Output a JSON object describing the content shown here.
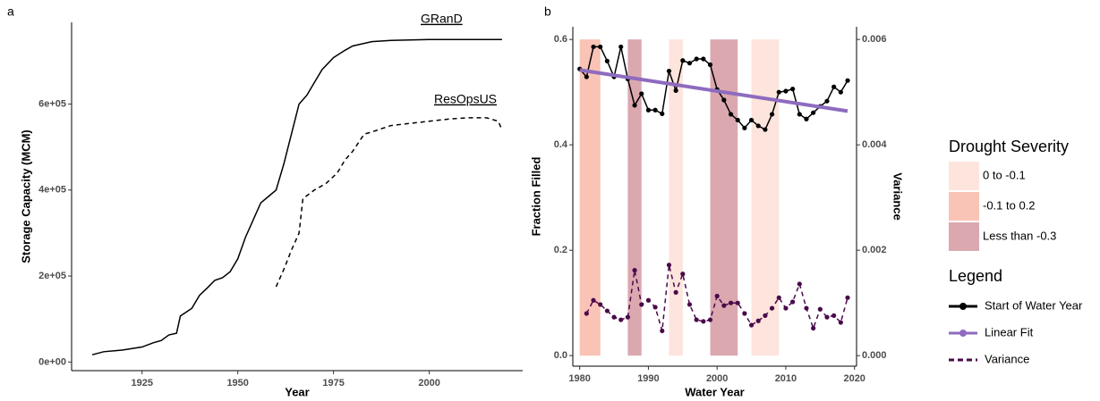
{
  "chart_data": [
    {
      "type": "line",
      "panel_label": "a",
      "x_label": "Year",
      "y_label": "Storage Capacity (MCM)",
      "xlim": [
        1906.6,
        2024.4
      ],
      "xticks": [
        1925,
        1950,
        1975,
        2000
      ],
      "ylim": [
        -20000,
        790000
      ],
      "yticks": [
        {
          "value": 0,
          "label": "0e+00"
        },
        {
          "value": 200000,
          "label": "2e+05"
        },
        {
          "value": 400000,
          "label": "4e+05"
        },
        {
          "value": 600000,
          "label": "6e+05"
        }
      ],
      "series": [
        {
          "name": "GRanD",
          "color": "#000000",
          "dashed": false,
          "markers": false,
          "x": [
            1912,
            1915,
            1920,
            1925,
            1928,
            1930,
            1932,
            1934,
            1935,
            1938,
            1940,
            1942,
            1944,
            1946,
            1948,
            1950,
            1952,
            1954,
            1956,
            1958,
            1960,
            1962,
            1964,
            1966,
            1968,
            1970,
            1972,
            1975,
            1978,
            1980,
            1985,
            1990,
            2000,
            2019
          ],
          "values": [
            17000,
            24000,
            28000,
            35000,
            45000,
            50000,
            63000,
            67000,
            107000,
            125000,
            155000,
            172000,
            190000,
            196000,
            210000,
            240000,
            290000,
            330000,
            370000,
            385000,
            400000,
            460000,
            530000,
            600000,
            620000,
            650000,
            680000,
            708000,
            725000,
            735000,
            745000,
            748000,
            750000,
            750000
          ]
        },
        {
          "name": "ResOpsUS",
          "color": "#000000",
          "dashed": true,
          "markers": false,
          "x": [
            1960,
            1962,
            1964,
            1966,
            1967,
            1970,
            1973,
            1976,
            1978,
            1980,
            1983,
            1985,
            1990,
            1995,
            2000,
            2005,
            2010,
            2015,
            2018,
            2019
          ],
          "values": [
            175000,
            215000,
            260000,
            300000,
            380000,
            400000,
            415000,
            440000,
            470000,
            490000,
            530000,
            535000,
            550000,
            555000,
            560000,
            565000,
            568000,
            568000,
            560000,
            540000
          ]
        }
      ]
    },
    {
      "type": "line",
      "panel_label": "b",
      "x_label": "Water Year",
      "y_label": "Fraction Filled",
      "y2_label": "Variance",
      "x": [
        1980,
        1981,
        1982,
        1983,
        1984,
        1985,
        1986,
        1987,
        1988,
        1989,
        1990,
        1991,
        1992,
        1993,
        1994,
        1995,
        1996,
        1997,
        1998,
        1999,
        2000,
        2001,
        2002,
        2003,
        2004,
        2005,
        2006,
        2007,
        2008,
        2009,
        2010,
        2011,
        2012,
        2013,
        2014,
        2015,
        2016,
        2017,
        2018,
        2019
      ],
      "xlim": [
        1979,
        2020.3
      ],
      "xticks": [
        1980,
        1990,
        2000,
        2010,
        2020
      ],
      "ylim": [
        -0.02,
        0.624
      ],
      "yticks": [
        {
          "value": 0,
          "label": "0.0"
        },
        0.2,
        0.4,
        0.6
      ],
      "y2lim": [
        -0.0002,
        0.00624
      ],
      "y2ticks": [
        {
          "value": 0,
          "label": "0.000"
        },
        0.002,
        0.004,
        0.006
      ],
      "bands_title": "Drought Severity",
      "band_categories": [
        {
          "name": "0 to -0.1",
          "color": "#fde4dc",
          "spans": [
            [
              1993,
              1995
            ],
            [
              2005,
              2009
            ]
          ]
        },
        {
          "name": "-0.1 to 0.2",
          "color": "#f9c3b6",
          "spans": [
            [
              1980,
              1983
            ]
          ]
        },
        {
          "name": "Less than -0.3",
          "color": "#dba8b0",
          "spans": [
            [
              1987,
              1989
            ],
            [
              1999,
              2003
            ]
          ]
        }
      ],
      "legend_title": "Legend",
      "series": [
        {
          "name": "Start of Water Year",
          "color": "#000000",
          "dashed": false,
          "markers": true,
          "values": [
            0.544,
            0.529,
            0.586,
            0.586,
            0.559,
            0.529,
            0.586,
            0.525,
            0.475,
            0.497,
            0.466,
            0.466,
            0.459,
            0.54,
            0.503,
            0.56,
            0.555,
            0.563,
            0.563,
            0.552,
            0.505,
            0.485,
            0.458,
            0.447,
            0.432,
            0.447,
            0.436,
            0.429,
            0.458,
            0.5,
            0.502,
            0.506,
            0.458,
            0.449,
            0.461,
            0.473,
            0.483,
            0.51,
            0.5,
            0.522
          ]
        },
        {
          "name": "Linear Fit",
          "color": "#8e6bbf",
          "dashed": false,
          "markers": false,
          "x": [
            1980,
            2019
          ],
          "values": [
            0.542,
            0.464
          ]
        },
        {
          "name": "Variance",
          "color": "#4a0a4a",
          "dashed": true,
          "markers": true,
          "axis": "y2",
          "values": [
            null,
            0.0008,
            0.00105,
            0.00097,
            0.00085,
            0.00073,
            0.00068,
            0.00073,
            0.00162,
            0.00097,
            0.00105,
            0.00092,
            0.00047,
            0.00172,
            0.0012,
            0.00155,
            0.00097,
            0.00068,
            0.00065,
            0.00068,
            0.00113,
            0.00095,
            0.001,
            0.001,
            0.0008,
            0.00058,
            0.00066,
            0.00076,
            0.0009,
            0.0011,
            0.0009,
            0.00102,
            0.00136,
            0.0009,
            0.00052,
            0.00088,
            0.00073,
            0.00076,
            0.00063,
            0.0011
          ]
        }
      ]
    }
  ]
}
